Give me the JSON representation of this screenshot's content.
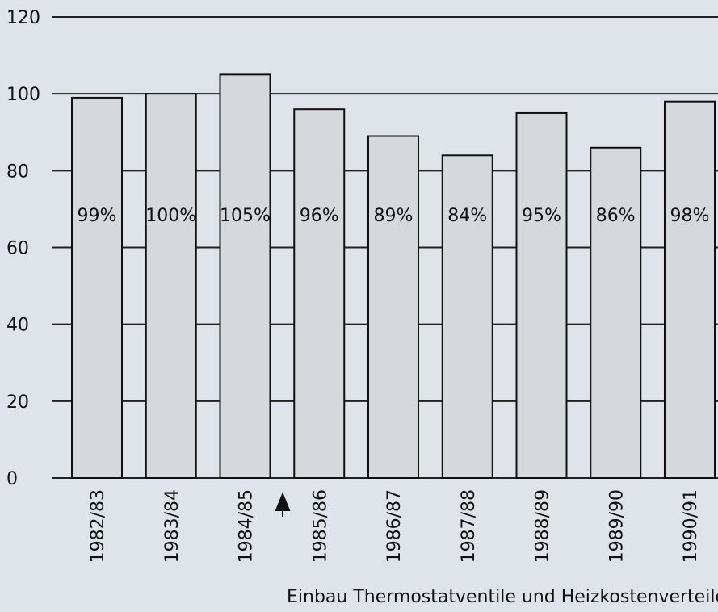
{
  "chart_data": {
    "type": "bar",
    "categories": [
      "1982/83",
      "1983/84",
      "1984/85",
      "1985/86",
      "1986/87",
      "1987/88",
      "1988/89",
      "1989/90",
      "1990/91"
    ],
    "values": [
      99,
      100,
      105,
      96,
      89,
      84,
      95,
      86,
      98
    ],
    "value_labels": [
      "99%",
      "100%",
      "105%",
      "96%",
      "89%",
      "84%",
      "95%",
      "86%",
      "98%"
    ],
    "color": "#d6d9dc",
    "ylim": [
      0,
      120
    ],
    "yticks": [
      0,
      20,
      40,
      60,
      80,
      100,
      120
    ],
    "grid": true,
    "annotation": "Einbau Thermostatventile und Heizkostenverteiler"
  }
}
